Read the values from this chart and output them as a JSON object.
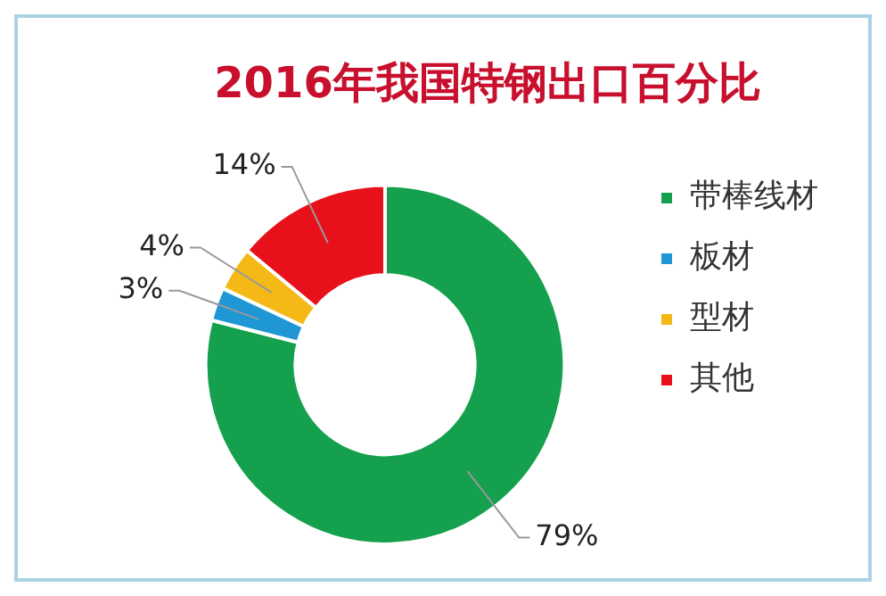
{
  "chart_data": {
    "type": "donut",
    "title": "2016年我国特钢出口百分比",
    "categories": [
      "带棒线材",
      "板材",
      "型材",
      "其他"
    ],
    "values": [
      79,
      3,
      4,
      14
    ],
    "colors": [
      "#14a04c",
      "#1e97d4",
      "#f4b916",
      "#e8101a"
    ],
    "value_labels": [
      "79%",
      "3%",
      "4%",
      "14%"
    ],
    "legend": "right"
  }
}
